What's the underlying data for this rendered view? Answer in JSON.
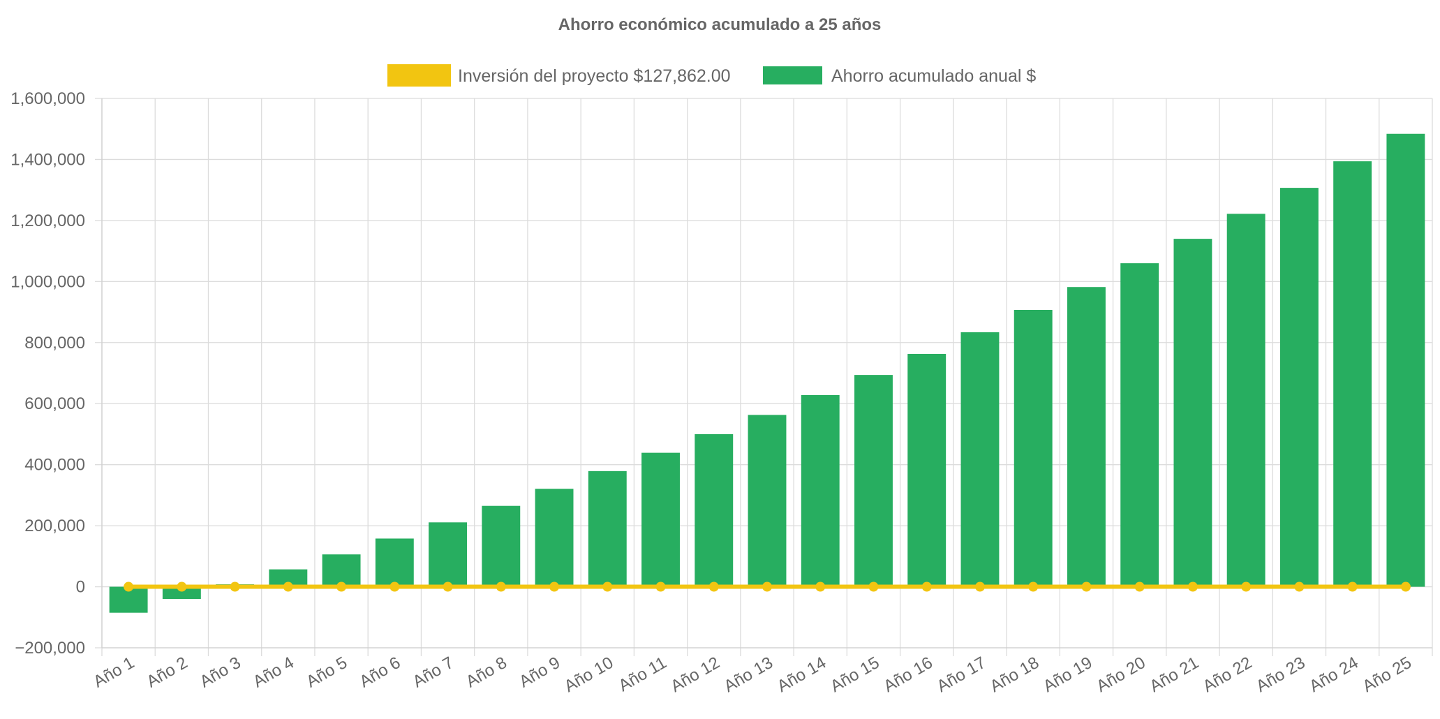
{
  "chart_data": {
    "type": "bar",
    "title": "Ahorro económico acumulado a 25 años",
    "categories": [
      "Año 1",
      "Año 2",
      "Año 3",
      "Año 4",
      "Año 5",
      "Año 6",
      "Año 7",
      "Año 8",
      "Año 9",
      "Año 10",
      "Año 11",
      "Año 12",
      "Año 13",
      "Año 14",
      "Año 15",
      "Año 16",
      "Año 17",
      "Año 18",
      "Año 19",
      "Año 20",
      "Año 21",
      "Año 22",
      "Año 23",
      "Año 24",
      "Año 25"
    ],
    "series": [
      {
        "name": "Inversión del proyecto $127,862.00",
        "type": "line",
        "color": "#f2c511",
        "values": [
          0,
          0,
          0,
          0,
          0,
          0,
          0,
          0,
          0,
          0,
          0,
          0,
          0,
          0,
          0,
          0,
          0,
          0,
          0,
          0,
          0,
          0,
          0,
          0,
          0
        ]
      },
      {
        "name": "Ahorro acumulado anual $",
        "type": "bar",
        "color": "#27ae60",
        "values": [
          -85000,
          -40000,
          8000,
          57000,
          106000,
          158000,
          211000,
          265000,
          321000,
          379000,
          439000,
          500000,
          563000,
          628000,
          694000,
          763000,
          834000,
          907000,
          982000,
          1060000,
          1140000,
          1222000,
          1307000,
          1394000,
          1484000
        ]
      }
    ],
    "ylim": [
      -200000,
      1600000
    ],
    "yticks": [
      -200000,
      0,
      200000,
      400000,
      600000,
      800000,
      1000000,
      1200000,
      1400000,
      1600000
    ],
    "ytick_labels": [
      "−200,000",
      "0",
      "200,000",
      "400,000",
      "600,000",
      "800,000",
      "1,000,000",
      "1,200,000",
      "1,400,000",
      "1,600,000"
    ],
    "xlabel": "",
    "ylabel": "",
    "grid": true,
    "legend_position": "top"
  }
}
